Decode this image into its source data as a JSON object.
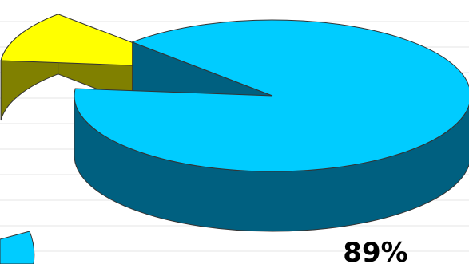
{
  "chart_data": {
    "type": "pie",
    "style": "3d-exploded",
    "slices": [
      {
        "value": 89,
        "label": "89%",
        "color": "#00ccff",
        "side_color": "#006080"
      },
      {
        "value": 11,
        "label": "",
        "color": "#ffff00",
        "side_color": "#808000"
      }
    ],
    "grid": true,
    "legend": "none"
  }
}
